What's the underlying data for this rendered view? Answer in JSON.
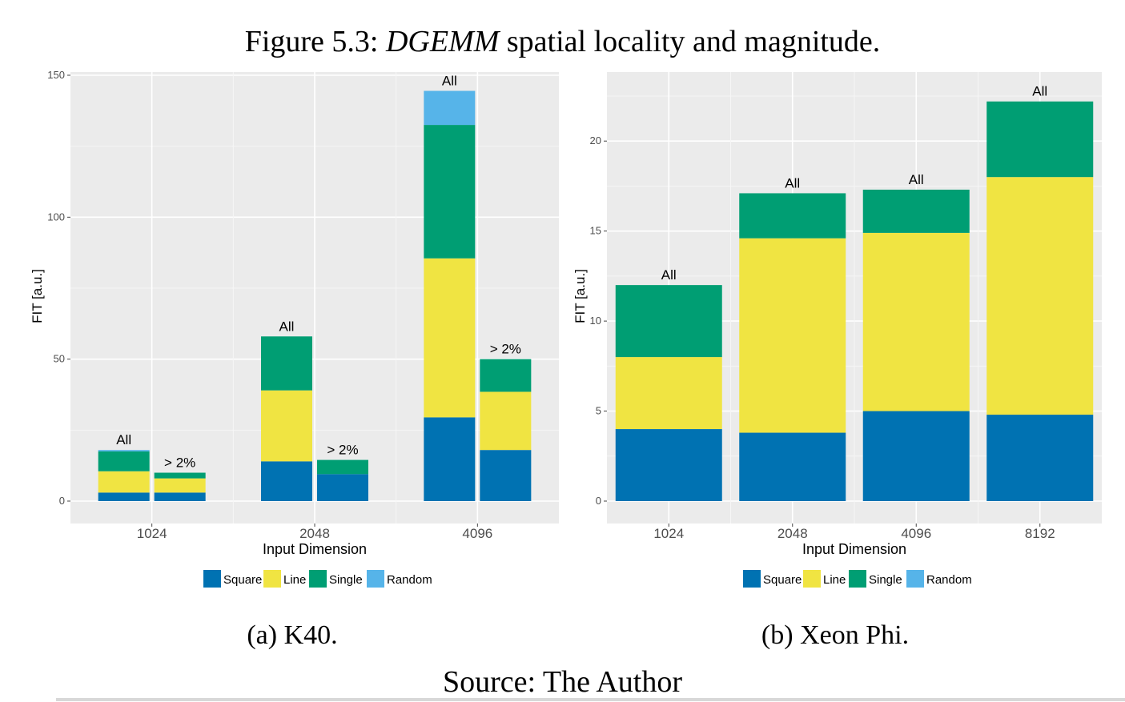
{
  "figure": {
    "title_prefix": "Figure 5.3: ",
    "title_italic": "DGEMM",
    "title_suffix": " spatial locality and magnitude.",
    "source": "Source: The Author"
  },
  "colors": {
    "Square": "#0072B2",
    "Line": "#F0E442",
    "Single": "#009E73",
    "Random": "#56B4E9",
    "panel_bg": "#EBEBEB",
    "grid": "#FFFFFF"
  },
  "chart_data": [
    {
      "type": "bar",
      "stacked": true,
      "caption": "(a) K40.",
      "xlabel": "Input Dimension",
      "ylabel": "FIT [a.u.]",
      "ylim": [
        0,
        150
      ],
      "yticks": [
        0,
        50,
        100,
        150
      ],
      "categories": [
        "1024",
        "2048",
        "4096"
      ],
      "grid": true,
      "legend": {
        "position": "bottom",
        "entries": [
          "Square",
          "Line",
          "Single",
          "Random"
        ]
      },
      "bars": [
        {
          "category": "1024",
          "label": "All",
          "Square": 3,
          "Line": 7.5,
          "Single": 7,
          "Random": 0.5
        },
        {
          "category": "1024",
          "label": "> 2%",
          "Square": 3,
          "Line": 5,
          "Single": 2,
          "Random": 0
        },
        {
          "category": "2048",
          "label": "All",
          "Square": 14,
          "Line": 25,
          "Single": 19,
          "Random": 0
        },
        {
          "category": "2048",
          "label": "> 2%",
          "Square": 9.5,
          "Line": 0,
          "Single": 5,
          "Random": 0
        },
        {
          "category": "4096",
          "label": "All",
          "Square": 29.5,
          "Line": 56,
          "Single": 47,
          "Random": 12
        },
        {
          "category": "4096",
          "label": "> 2%",
          "Square": 18,
          "Line": 20.5,
          "Single": 11.5,
          "Random": 0
        }
      ]
    },
    {
      "type": "bar",
      "stacked": true,
      "caption": "(b) Xeon Phi.",
      "xlabel": "Input Dimension",
      "ylabel": "FIT [a.u.]",
      "ylim": [
        0,
        22.5
      ],
      "yticks": [
        0,
        5,
        10,
        15,
        20
      ],
      "categories": [
        "1024",
        "2048",
        "4096",
        "8192"
      ],
      "grid": true,
      "legend": {
        "position": "bottom",
        "entries": [
          "Square",
          "Line",
          "Single",
          "Random"
        ]
      },
      "bars": [
        {
          "category": "1024",
          "label": "All",
          "Square": 4,
          "Line": 4,
          "Single": 4,
          "Random": 0
        },
        {
          "category": "2048",
          "label": "All",
          "Square": 3.8,
          "Line": 10.8,
          "Single": 2.5,
          "Random": 0
        },
        {
          "category": "4096",
          "label": "All",
          "Square": 5,
          "Line": 9.9,
          "Single": 2.4,
          "Random": 0
        },
        {
          "category": "8192",
          "label": "All",
          "Square": 4.8,
          "Line": 13.2,
          "Single": 4.2,
          "Random": 0
        }
      ]
    }
  ]
}
